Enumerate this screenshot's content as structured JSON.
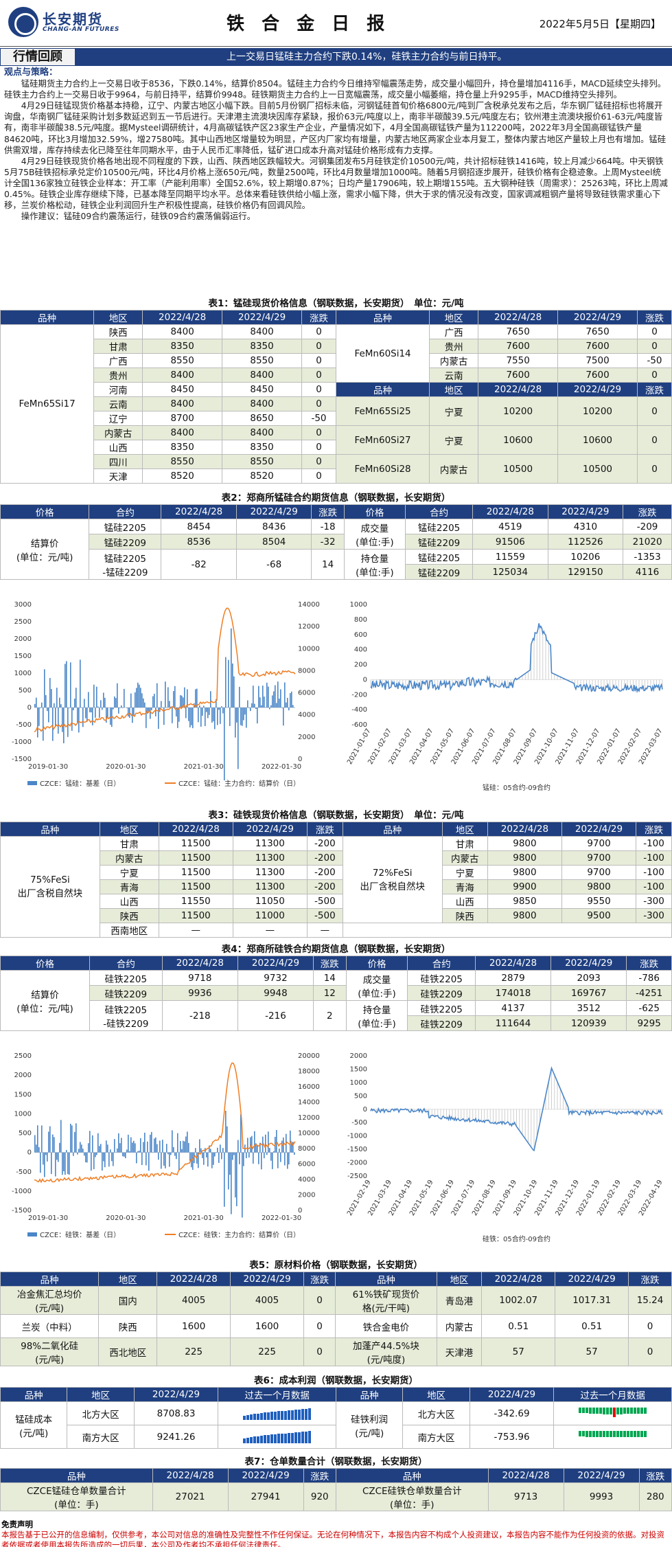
{
  "header": {
    "logo_cn": "长安期货",
    "logo_en": "CHANG-AN FUTURES",
    "title": "铁 合 金 日 报",
    "date": "2022年5月5日【星期四】"
  },
  "banner": {
    "label": "行情回顾",
    "text": "上一交易日锰硅主力合约下跌0.14%，硅铁主力合约与前日持平。"
  },
  "commentary": {
    "heading": "观点与策略：",
    "p1": "　　锰硅期货主力合约上一交易日收于8536，下跌0.14%，结算价8504。锰硅主力合约今日维持窄幅震荡走势，成交量小幅回升，持仓量增加4116手，MACD延续空头排列。硅铁主力合约上一交易日收于9964，与前日持平，结算价9948。硅铁期货主力合约上一日宽幅震荡，成交量小幅萎缩，持仓量上升9295手，MACD维持空头排列。",
    "p2": "　　4月29日硅锰现货价格基本持稳，辽宁、内蒙古地区小幅下跌。目前5月份钢厂招标未临，河钢锰硅首旬价格6800元/吨到厂含税承兑发布之后，华东钢厂锰硅招标也将展开询盘，华南钢厂锰硅采购计划多数延迟到五一节后进行。天津港主流澳块因库存紧缺，报价63元/吨度以上，南非半碳酸39.5元/吨度左右；钦州港主流澳块报价61-63元/吨度皆有，南非半碳酸38.5元/吨度。据Mysteel调研统计，4月高碳锰铁产区23家生产企业，产量情况如下，4月全国高碳锰铁产量为112200吨，2022年3月全国高碳锰铁产量84620吨，环比3月增加32.59%，增27580吨。其中山西地区增量较为明显，产区内厂家均有增量，内蒙古地区两家企业本月复工，整体内蒙古地区产量较上月也有增加。锰硅供需双增，库存持续去化已降至往年同期水平，由于人民币汇率降低，锰矿进口成本升高对锰硅价格形成有力支撑。",
    "p3": "　　4月29日硅铁现货价格各地出现不同程度的下跌，山西、陕西地区跌幅较大。河钢集团发布5月硅铁定价10500元/吨，共计招标硅铁1416吨，较上月减少664吨。中天钢铁5月75B硅铁招标承兑定价10500元/吨，环比4月价格上涨650元/吨，数量2500吨，环比4月数量增加1000吨。随着5月钢招逐步展开，硅铁价格有企稳迹象。上周Mysteel统计全国136家独立硅铁企业样本：开工率（产能利用率）全国52.6%，较上期增0.87%；日均产量17906吨，较上期增155吨。五大钢种硅铁（周需求）：25263吨，环比上周减0.45%。硅铁企业库存继续下降，已基本降至同期平均水平。总体来看硅铁供给小幅上涨，需求小幅下降，供大于求的情况没有改变，国家调减粗钢产量将导致硅铁需求重心下移，兰炭价格松动，硅铁企业利润回升生产积极性提高，硅铁价格仍有回调风险。",
    "p4": "　　操作建议：锰硅09合约震荡运行，硅铁09合约震荡偏弱运行。"
  },
  "table1": {
    "caption": "表1：锰硅现货价格信息（钢联数据，长安期货）　单位：元/吨",
    "headers": [
      "品种",
      "地区",
      "2022/4/28",
      "2022/4/29",
      "涨跌",
      "品种",
      "地区",
      "2022/4/28",
      "2022/4/29",
      "涨跌"
    ],
    "left_product": "FeMn65Si17",
    "left_rows": [
      [
        "陕西",
        "8400",
        "8400",
        "0"
      ],
      [
        "甘肃",
        "8350",
        "8350",
        "0"
      ],
      [
        "广西",
        "8550",
        "8550",
        "0"
      ],
      [
        "贵州",
        "8400",
        "8400",
        "0"
      ],
      [
        "河南",
        "8450",
        "8450",
        "0"
      ],
      [
        "云南",
        "8400",
        "8400",
        "0"
      ],
      [
        "辽宁",
        "8700",
        "8650",
        "-50"
      ],
      [
        "内蒙古",
        "8400",
        "8400",
        "0"
      ],
      [
        "山西",
        "8350",
        "8350",
        "0"
      ],
      [
        "四川",
        "8550",
        "8550",
        "0"
      ],
      [
        "天津",
        "8520",
        "8520",
        "0"
      ]
    ],
    "r1_product": "FeMn60Si14",
    "r1_rows": [
      [
        "广西",
        "7650",
        "7650",
        "0"
      ],
      [
        "贵州",
        "7600",
        "7600",
        "0"
      ],
      [
        "内蒙古",
        "7550",
        "7500",
        "-50"
      ],
      [
        "云南",
        "7600",
        "7600",
        "0"
      ]
    ],
    "r2_rows": [
      [
        "FeMn65Si25",
        "宁夏",
        "10200",
        "10200",
        "0"
      ],
      [
        "FeMn60Si27",
        "宁夏",
        "10600",
        "10600",
        "0"
      ],
      [
        "FeMn60Si28",
        "内蒙古",
        "10500",
        "10500",
        "0"
      ]
    ]
  },
  "table2": {
    "caption": "表2：郑商所锰硅合约期货信息（钢联数据，长安期货）",
    "headers": [
      "价格",
      "合约",
      "2022/4/28",
      "2022/4/29",
      "涨跌",
      "价格",
      "合约",
      "2022/4/28",
      "2022/4/29",
      "涨跌"
    ],
    "settle_label": "结算价\n(单位：元/吨)",
    "settle_rows": [
      [
        "锰硅2205",
        "8454",
        "8436",
        "-18"
      ],
      [
        "锰硅2209",
        "8536",
        "8504",
        "-32"
      ],
      [
        "锰硅2205\n-锰硅2209",
        "-82",
        "-68",
        "14"
      ]
    ],
    "vol_label": "成交量\n(单位:手)",
    "vol_rows": [
      [
        "锰硅2205",
        "4519",
        "4310",
        "-209"
      ],
      [
        "锰硅2209",
        "91506",
        "112526",
        "21020"
      ]
    ],
    "oi_label": "持仓量\n(单位:手)",
    "oi_rows": [
      [
        "锰硅2205",
        "11559",
        "10206",
        "-1353"
      ],
      [
        "锰硅2209",
        "125034",
        "129150",
        "4116"
      ]
    ]
  },
  "chart1": {
    "legend_a": "CZCE：锰硅：基差（日）",
    "legend_b": "CZCE：锰硅：主力合约：结算价（日）",
    "left_ticks": [
      "3000",
      "2500",
      "2000",
      "1500",
      "1000",
      "500",
      "0",
      "-500",
      "-1000",
      "-1500"
    ],
    "right_ticks": [
      "14000",
      "12000",
      "10000",
      "8000",
      "6000",
      "4000",
      "2000",
      "0"
    ],
    "x_ticks": [
      "2019-01-30",
      "2020-01-30",
      "2021-01-30",
      "2022-01-30"
    ]
  },
  "chart2": {
    "caption": "锰硅：05合约-09合约",
    "y_ticks": [
      "1000",
      "800",
      "600",
      "400",
      "200",
      "0",
      "-200",
      "-400",
      "-600"
    ],
    "x_ticks": [
      "2021-01-07",
      "2021-02-07",
      "2021-03-07",
      "2021-04-07",
      "2021-05-07",
      "2021-06-07",
      "2021-07-07",
      "2021-08-07",
      "2021-09-07",
      "2021-10-07",
      "2021-11-07",
      "2021-12-07",
      "2022-01-07",
      "2022-02-07",
      "2022-03-07"
    ]
  },
  "table3": {
    "caption": "表3：硅铁现货价格信息（钢联数据，长安期货）　单位：元/吨",
    "headers": [
      "品种",
      "地区",
      "2022/4/28",
      "2022/4/29",
      "涨跌",
      "品种",
      "地区",
      "2022/4/28",
      "2022/4/29",
      "涨跌"
    ],
    "left_product": "75%FeSi\n出厂含税自然块",
    "left_rows": [
      [
        "甘肃",
        "11500",
        "11300",
        "-200"
      ],
      [
        "内蒙古",
        "11500",
        "11300",
        "-200"
      ],
      [
        "宁夏",
        "11500",
        "11300",
        "-200"
      ],
      [
        "青海",
        "11500",
        "11300",
        "-200"
      ],
      [
        "山西",
        "11550",
        "11050",
        "-500"
      ],
      [
        "陕西",
        "11500",
        "11000",
        "-500"
      ],
      [
        "西南地区",
        "—",
        "—",
        "—"
      ]
    ],
    "right_product": "72%FeSi\n出厂含税自然块",
    "right_rows": [
      [
        "甘肃",
        "9800",
        "9700",
        "-100"
      ],
      [
        "内蒙古",
        "9800",
        "9700",
        "-100"
      ],
      [
        "宁夏",
        "9800",
        "9700",
        "-100"
      ],
      [
        "青海",
        "9900",
        "9800",
        "-100"
      ],
      [
        "山西",
        "9850",
        "9550",
        "-300"
      ],
      [
        "陕西",
        "9800",
        "9500",
        "-300"
      ]
    ]
  },
  "table4": {
    "caption": "表4：郑商所硅铁合约期货信息（钢联数据，长安期货）",
    "headers": [
      "价格",
      "合约",
      "2022/4/28",
      "2022/4/29",
      "涨跌",
      "价格",
      "合约",
      "2022/4/28",
      "2022/4/29",
      "涨跌"
    ],
    "settle_label": "结算价\n(单位：元/吨)",
    "settle_rows": [
      [
        "硅铁2205",
        "9718",
        "9732",
        "14"
      ],
      [
        "硅铁2209",
        "9936",
        "9948",
        "12"
      ],
      [
        "硅铁2205\n-硅铁2209",
        "-218",
        "-216",
        "2"
      ]
    ],
    "vol_label": "成交量\n(单位:手)",
    "vol_rows": [
      [
        "硅铁2205",
        "2879",
        "2093",
        "-786"
      ],
      [
        "硅铁2209",
        "174018",
        "169767",
        "-4251"
      ]
    ],
    "oi_label": "持仓量\n(单位:手)",
    "oi_rows": [
      [
        "硅铁2205",
        "4137",
        "3512",
        "-625"
      ],
      [
        "硅铁2209",
        "111644",
        "120939",
        "9295"
      ]
    ]
  },
  "chart3": {
    "legend_a": "CZCE：硅铁：基差（日）",
    "legend_b": "CZCE：硅铁：主力合约：结算价（日）",
    "left_ticks": [
      "2500",
      "2000",
      "1500",
      "1000",
      "500",
      "0",
      "-500",
      "-1000",
      "-1500"
    ],
    "right_ticks": [
      "20000",
      "18000",
      "16000",
      "14000",
      "12000",
      "10000",
      "8000",
      "6000",
      "4000",
      "2000",
      "0"
    ],
    "x_ticks": [
      "2019-01-30",
      "2020-01-30",
      "2021-01-30",
      "2022-01-30"
    ]
  },
  "chart4": {
    "caption": "硅铁：05合约-09合约",
    "y_ticks": [
      "2000",
      "1500",
      "1000",
      "500",
      "0",
      "-500",
      "-1000",
      "-1500",
      "-2000",
      "-2500"
    ],
    "x_ticks": [
      "2021-02-19",
      "2021-03-19",
      "2021-04-19",
      "2021-05-19",
      "2021-06-19",
      "2021-07-19",
      "2021-08-19",
      "2021-09-19",
      "2021-10-19",
      "2021-11-19",
      "2021-12-19",
      "2022-01-19",
      "2022-02-19",
      "2022-03-19",
      "2022-04-19"
    ]
  },
  "table5": {
    "caption": "表5：原材料价格（钢联数据，长安期货）",
    "headers": [
      "品种",
      "地区",
      "2022/4/28",
      "2022/4/29",
      "涨跌",
      "品种",
      "地区",
      "2022/4/28",
      "2022/4/29",
      "涨跌"
    ],
    "rows": [
      [
        "冶金焦汇总均价\n(元/吨)",
        "国内",
        "4005",
        "4005",
        "0",
        "61%铁矿现货价\n格(元/干吨)",
        "青岛港",
        "1002.07",
        "1017.31",
        "15.24"
      ],
      [
        "兰炭（中料）",
        "陕西",
        "1600",
        "1600",
        "0",
        "铁合金电价",
        "内蒙古",
        "0.51",
        "0.51",
        "0"
      ],
      [
        "98%二氧化硅\n(元/吨)",
        "西北地区",
        "225",
        "225",
        "0",
        "加蓬产44.5%块\n(元/吨度)",
        "天津港",
        "57",
        "57",
        "0"
      ]
    ]
  },
  "table6": {
    "caption": "表6：成本利润（钢联数据，长安期货）",
    "headers": [
      "品种",
      "地区",
      "2022/4/29",
      "过去一个月数据",
      "品种",
      "地区",
      "2022/4/29",
      "过去一个月数据"
    ],
    "left_label": "锰硅成本\n(元/吨)",
    "left_rows": [
      [
        "北方大区",
        "8708.83"
      ],
      [
        "南方大区",
        "9241.26"
      ]
    ],
    "right_label": "硅铁利润\n(元/吨)",
    "right_rows": [
      [
        "北方大区",
        "-342.69"
      ],
      [
        "南方大区",
        "-753.96"
      ]
    ]
  },
  "table7": {
    "caption": "表7：仓单数量合计（钢联数据，长安期货）",
    "headers": [
      "品种",
      "2022/4/28",
      "2022/4/29",
      "涨跌",
      "品种",
      "2022/4/28",
      "2022/4/29",
      "涨跌"
    ],
    "row": [
      "CZCE锰硅仓单数量合计\n(单位：手)",
      "27021",
      "27941",
      "920",
      "CZCE硅铁仓单数量合计\n(单位：手)",
      "9713",
      "9993",
      "280"
    ]
  },
  "disclaimer": {
    "heading": "免责声明",
    "text": "本报告基于已公开的信息编制，仅供参考，本公司对信息的准确性及完整性不作任何保证。无论在何种情况下，本报告内容不构成个人投资建议，本报告内容不能作为任何投资的依据。对投资者依据或者使用本报告所造成的一切后果，本公司及作者均不承担任何法律责任。"
  },
  "colors": {
    "brand": "#1f3f80",
    "row_green": "#e6ecd8",
    "series_blue": "#4a86c8",
    "series_orange": "#ef7d22"
  }
}
